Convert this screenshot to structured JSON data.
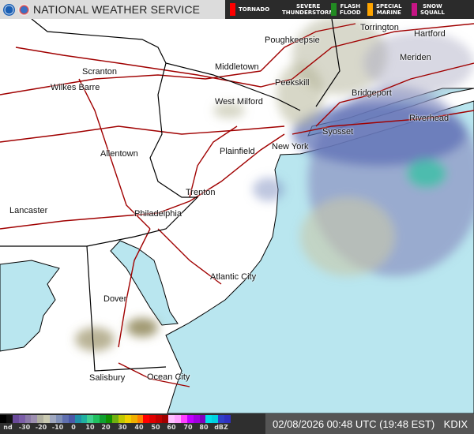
{
  "header": {
    "title": "NATIONAL WEATHER SERVICE",
    "logos": [
      "noaa-logo",
      "nws-logo"
    ],
    "warning_legend": [
      {
        "label": "TORNADO",
        "color": "#ff0000"
      },
      {
        "label": "SEVERE\nTHUNDERSTORM",
        "color": "#ffff00"
      },
      {
        "label": "FLASH\nFLOOD",
        "color": "#228b22"
      },
      {
        "label": "SPECIAL\nMARINE",
        "color": "#ffa500"
      },
      {
        "label": "SNOW\nSQUALL",
        "color": "#c71585"
      }
    ]
  },
  "map": {
    "land_color": "#ffffff",
    "water_color": "#b9e6ef",
    "road_color": "#a00000",
    "border_color": "#000000",
    "cities": [
      {
        "name": "Poughkeepsie"
      },
      {
        "name": "Torrington"
      },
      {
        "name": "Hartford"
      },
      {
        "name": "Scranton"
      },
      {
        "name": "Middletown"
      },
      {
        "name": "Meriden"
      },
      {
        "name": "Wilkes Barre"
      },
      {
        "name": "Peekskill"
      },
      {
        "name": "West Milford"
      },
      {
        "name": "Bridgeport"
      },
      {
        "name": "Riverhead"
      },
      {
        "name": "Syosset"
      },
      {
        "name": "Allentown"
      },
      {
        "name": "Plainfield"
      },
      {
        "name": "New York"
      },
      {
        "name": "Trenton"
      },
      {
        "name": "Lancaster"
      },
      {
        "name": "Philadelphia"
      },
      {
        "name": "Atlantic City"
      },
      {
        "name": "Dover"
      },
      {
        "name": "Salisbury"
      },
      {
        "name": "Ocean City"
      }
    ]
  },
  "footer": {
    "scale_labels": [
      "nd",
      "-30",
      "-20",
      "-10",
      "0",
      "10",
      "20",
      "30",
      "40",
      "50",
      "60",
      "70",
      "80",
      "dBZ"
    ],
    "scale_colors": [
      "#000000",
      "#111111",
      "#6a4a9a",
      "#7b5da8",
      "#8c7aa8",
      "#9d8fb0",
      "#b0b0a0",
      "#c8c8b0",
      "#a0a8c0",
      "#8090b8",
      "#6070b0",
      "#4a58a8",
      "#2090a8",
      "#20b0a0",
      "#40d090",
      "#20c060",
      "#10a030",
      "#109000",
      "#70b010",
      "#c0c800",
      "#f0d000",
      "#f0b000",
      "#ff8000",
      "#ff0000",
      "#e00000",
      "#c00000",
      "#a00000",
      "#ffc0ff",
      "#ffa0ff",
      "#ff40ff",
      "#c000ff",
      "#a000e0",
      "#8000c0",
      "#00e0e8",
      "#00d0e0",
      "#3040c8",
      "#3030c0"
    ],
    "timestamp": "02/08/2026 00:48 UTC (19:48 EST)",
    "site": "KDIX"
  }
}
